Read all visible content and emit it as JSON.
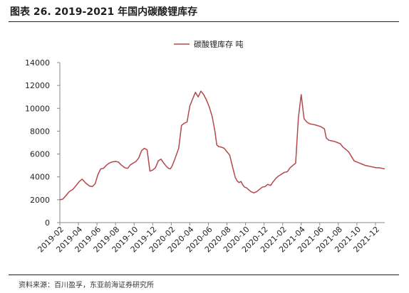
{
  "header": {
    "title": "图表 26. 2019-2021 年国内碳酸锂库存"
  },
  "footer": {
    "source": "资料来源：百川盈孚，东亚前海证券研究所"
  },
  "chart_data": {
    "type": "line",
    "title": "",
    "xlabel": "",
    "ylabel": "",
    "ylim": [
      0,
      14000
    ],
    "yticks": [
      "0",
      "2000",
      "4000",
      "6000",
      "8000",
      "10000",
      "12000",
      "14000"
    ],
    "xticks": [
      "2019-02",
      "2019-04",
      "2019-06",
      "2019-08",
      "2019-10",
      "2019-12",
      "2020-02",
      "2020-04",
      "2020-06",
      "2020-08",
      "2020-10",
      "2020-12",
      "2021-02",
      "2021-04",
      "2021-06",
      "2021-08",
      "2021-10",
      "2021-12"
    ],
    "x_range": [
      0,
      35
    ],
    "grid": false,
    "legend_position": "top-center",
    "series": [
      {
        "name": "碳酸锂库存 吨",
        "color": "#b5484a",
        "x": [
          0,
          0.3,
          0.6,
          1,
          1.4,
          1.8,
          2.1,
          2.4,
          2.8,
          3.2,
          3.5,
          3.8,
          4.1,
          4.4,
          4.7,
          5.0,
          5.3,
          5.6,
          6.0,
          6.3,
          6.6,
          7.0,
          7.3,
          7.6,
          7.9,
          8.2,
          8.5,
          8.8,
          9.1,
          9.4,
          9.7,
          10.0,
          10.3,
          10.6,
          10.9,
          11.2,
          11.5,
          11.7,
          11.9,
          12.1,
          12.4,
          12.8,
          13.1,
          13.4,
          13.7,
          14.0,
          14.3,
          14.6,
          14.9,
          15.2,
          15.5,
          15.8,
          16.1,
          16.4,
          16.7,
          16.9,
          17.1,
          17.4,
          17.7,
          18.0,
          18.3,
          18.6,
          18.9,
          19.1,
          19.3,
          19.5,
          19.7,
          19.9,
          20.1,
          20.3,
          20.6,
          20.9,
          21.2,
          21.5,
          21.8,
          22.1,
          22.4,
          22.7,
          23.0,
          23.3,
          23.6,
          23.9,
          24.2,
          24.5,
          24.8,
          25.1,
          25.4,
          25.7,
          26.0,
          26.3,
          26.6,
          26.9,
          27.2,
          27.5,
          27.7,
          27.9,
          28.1,
          28.3,
          28.5,
          28.7,
          29.0,
          29.3,
          29.6,
          29.9,
          30.2,
          30.5,
          30.8,
          31.1,
          31.4,
          31.7,
          32.0,
          32.3,
          32.6,
          32.9,
          33.2,
          33.5,
          33.8,
          34.1,
          34.4,
          34.7,
          35.0
        ],
        "y": [
          2000,
          2050,
          2300,
          2700,
          2900,
          3300,
          3600,
          3800,
          3450,
          3200,
          3150,
          3400,
          4200,
          4700,
          4750,
          5000,
          5200,
          5300,
          5350,
          5300,
          5050,
          4800,
          4750,
          5050,
          5200,
          5350,
          5650,
          6300,
          6500,
          6350,
          4500,
          4600,
          4800,
          5400,
          5550,
          5200,
          4900,
          4750,
          4700,
          4950,
          5600,
          6500,
          8500,
          8700,
          8800,
          10200,
          10800,
          11400,
          11000,
          11500,
          11200,
          10700,
          10100,
          9300,
          8000,
          6800,
          6650,
          6600,
          6500,
          6200,
          5900,
          4900,
          3950,
          3650,
          3500,
          3600,
          3300,
          3100,
          3050,
          2900,
          2700,
          2600,
          2700,
          2900,
          3100,
          3150,
          3350,
          3250,
          3600,
          3900,
          4100,
          4250,
          4400,
          4450,
          4800,
          5000,
          5200,
          9200,
          11200,
          9100,
          8800,
          8650,
          8600,
          8550,
          8500,
          8450,
          8400,
          8300,
          8200,
          7400,
          7200,
          7150,
          7100,
          7000,
          6900,
          6600,
          6400,
          6200,
          5800,
          5400,
          5300,
          5200,
          5100,
          5000,
          4950,
          4900,
          4850,
          4800,
          4800,
          4750,
          4700
        ]
      }
    ]
  }
}
